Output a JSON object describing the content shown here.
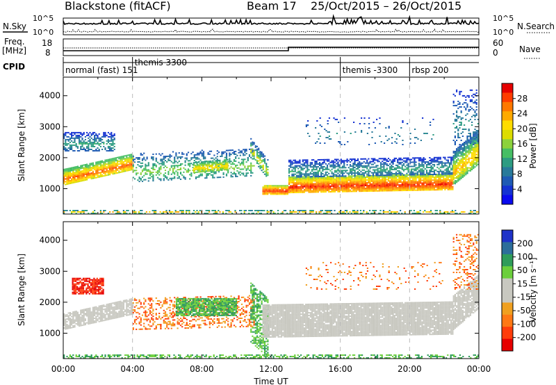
{
  "header": {
    "radar_title": "Blackstone (fitACF)",
    "beam": "Beam 17",
    "date_range": "25/Oct/2015 – 26/Oct/2015"
  },
  "status_panels": {
    "nsky_label": "N.Sky",
    "nsky_ticks": [
      "10^5",
      "10^0"
    ],
    "nsearch_label": "N.Search",
    "nsearch_ticks": [
      "10^5",
      "10^0"
    ],
    "freq_label": "Freq.",
    "freq_unit": "[MHz]",
    "freq_ticks": [
      "18",
      "8"
    ],
    "nave_label": "Nave",
    "nave_ticks": [
      "60",
      "0"
    ],
    "cpid_label": "CPID",
    "freq_series": {
      "x_hours": [
        0,
        13,
        13,
        24
      ],
      "mhz": [
        10.5,
        10.5,
        13,
        13
      ]
    },
    "cpid_modes": [
      {
        "label": "normal (fast) 151",
        "start_h": 0
      },
      {
        "label": "themis 3300",
        "start_h": 4
      },
      {
        "label": "themis -3300",
        "start_h": 16
      },
      {
        "label": "rbsp 200",
        "start_h": 20
      }
    ]
  },
  "chart_data": [
    {
      "type": "heatmap",
      "quantity": "Power",
      "ylabel": "Slant Range [km]",
      "xlabel": "Time UT",
      "x_ticks": [
        "00:00",
        "04:00",
        "08:00",
        "12:00",
        "16:00",
        "20:00",
        "00:00"
      ],
      "y_ticks": [
        1000,
        2000,
        3000,
        4000
      ],
      "ylim": [
        180,
        4600
      ],
      "xlim_hours": [
        0,
        24
      ],
      "colorbar": {
        "label": "Power [dB]",
        "ticks": [
          28,
          24,
          20,
          16,
          12,
          8,
          4
        ],
        "colors": [
          "#e60000",
          "#ff3c00",
          "#ff7800",
          "#ffaa00",
          "#ffdc00",
          "#dcdc00",
          "#8cd23c",
          "#46be64",
          "#2d9c82",
          "#287a9a",
          "#1e5ab4",
          "#1432d2",
          "#0a0aee"
        ]
      },
      "bands": [
        {
          "h0": 0.0,
          "h1": 4.0,
          "r0": 1100,
          "r1": 1600,
          "ramp": 500,
          "density": 0.9,
          "vmin": 12,
          "vmax": 28
        },
        {
          "h0": 0.0,
          "h1": 3.0,
          "r0": 2200,
          "r1": 2800,
          "ramp": 0,
          "density": 0.55,
          "vmin": 2,
          "vmax": 12
        },
        {
          "h0": 4.0,
          "h1": 11.0,
          "r0": 1200,
          "r1": 2100,
          "ramp": 200,
          "density": 0.35,
          "vmin": 4,
          "vmax": 16
        },
        {
          "h0": 7.5,
          "h1": 9.5,
          "r0": 1500,
          "r1": 1850,
          "ramp": 100,
          "density": 0.75,
          "vmin": 10,
          "vmax": 22
        },
        {
          "h0": 10.8,
          "h1": 11.8,
          "r0": 2000,
          "r1": 2600,
          "ramp": -700,
          "density": 0.6,
          "vmin": 4,
          "vmax": 20
        },
        {
          "h0": 11.5,
          "h1": 13.0,
          "r0": 800,
          "r1": 1100,
          "ramp": 0,
          "density": 0.95,
          "vmin": 16,
          "vmax": 30
        },
        {
          "h0": 13.0,
          "h1": 22.5,
          "r0": 850,
          "r1": 1350,
          "ramp": 100,
          "density": 0.95,
          "vmin": 16,
          "vmax": 30
        },
        {
          "h0": 13.0,
          "h1": 22.5,
          "r0": 1350,
          "r1": 1900,
          "ramp": 100,
          "density": 0.6,
          "vmin": 2,
          "vmax": 12
        },
        {
          "h0": 14.0,
          "h1": 21.5,
          "r0": 2400,
          "r1": 3300,
          "ramp": 0,
          "density": 0.08,
          "vmin": 2,
          "vmax": 10
        },
        {
          "h0": 22.5,
          "h1": 24.0,
          "r0": 1100,
          "r1": 2200,
          "ramp": 700,
          "density": 0.85,
          "vmin": 6,
          "vmax": 24
        },
        {
          "h0": 22.5,
          "h1": 24.0,
          "r0": 2400,
          "r1": 4200,
          "ramp": 0,
          "density": 0.25,
          "vmin": 2,
          "vmax": 10
        },
        {
          "h0": 0.0,
          "h1": 24.0,
          "r0": 180,
          "r1": 300,
          "ramp": 0,
          "density": 0.45,
          "vmin": 4,
          "vmax": 24
        }
      ]
    },
    {
      "type": "heatmap",
      "quantity": "Velocity",
      "ylabel": "Slant Range [km]",
      "xlabel": "Time UT",
      "x_ticks": [
        "00:00",
        "04:00",
        "08:00",
        "12:00",
        "16:00",
        "20:00",
        "00:00"
      ],
      "y_ticks": [
        1000,
        2000,
        3000,
        4000
      ],
      "ylim": [
        180,
        4600
      ],
      "xlim_hours": [
        0,
        24
      ],
      "colorbar": {
        "label": "Velocity [m s⁻¹]",
        "ticks": [
          "200",
          "100",
          "50",
          "15",
          "-15",
          "-50",
          "-100",
          "-200"
        ],
        "colors": [
          "#1e32c8",
          "#2d6e9a",
          "#2f9c5a",
          "#6ccf3c",
          "#c8c8c0",
          "#c8c8c0",
          "#f0a020",
          "#ff7814",
          "#ff3c0a",
          "#e60000"
        ]
      },
      "bands": [
        {
          "h0": 0.0,
          "h1": 4.0,
          "r0": 1100,
          "r1": 1600,
          "ramp": 500,
          "density": 0.85,
          "kind": "gray"
        },
        {
          "h0": 0.5,
          "h1": 2.3,
          "r0": 2250,
          "r1": 2750,
          "ramp": 0,
          "density": 0.8,
          "kind": "red"
        },
        {
          "h0": 4.0,
          "h1": 11.0,
          "r0": 1100,
          "r1": 2100,
          "ramp": 100,
          "density": 0.35,
          "kind": "orange"
        },
        {
          "h0": 6.5,
          "h1": 10.0,
          "r0": 1550,
          "r1": 2100,
          "ramp": 0,
          "density": 0.85,
          "kind": "green"
        },
        {
          "h0": 10.8,
          "h1": 11.8,
          "r0": 700,
          "r1": 2600,
          "ramp": -500,
          "density": 0.55,
          "kind": "green"
        },
        {
          "h0": 11.5,
          "h1": 22.5,
          "r0": 850,
          "r1": 1900,
          "ramp": 100,
          "density": 0.95,
          "kind": "gray"
        },
        {
          "h0": 14.0,
          "h1": 22.0,
          "r0": 2400,
          "r1": 3300,
          "ramp": 0,
          "density": 0.08,
          "kind": "orange"
        },
        {
          "h0": 22.5,
          "h1": 24.0,
          "r0": 1100,
          "r1": 2200,
          "ramp": 700,
          "density": 0.85,
          "kind": "gray"
        },
        {
          "h0": 22.5,
          "h1": 24.0,
          "r0": 2400,
          "r1": 4200,
          "ramp": 0,
          "density": 0.25,
          "kind": "orange"
        },
        {
          "h0": 0.0,
          "h1": 24.0,
          "r0": 180,
          "r1": 300,
          "ramp": 0,
          "density": 0.45,
          "kind": "green"
        }
      ]
    }
  ]
}
